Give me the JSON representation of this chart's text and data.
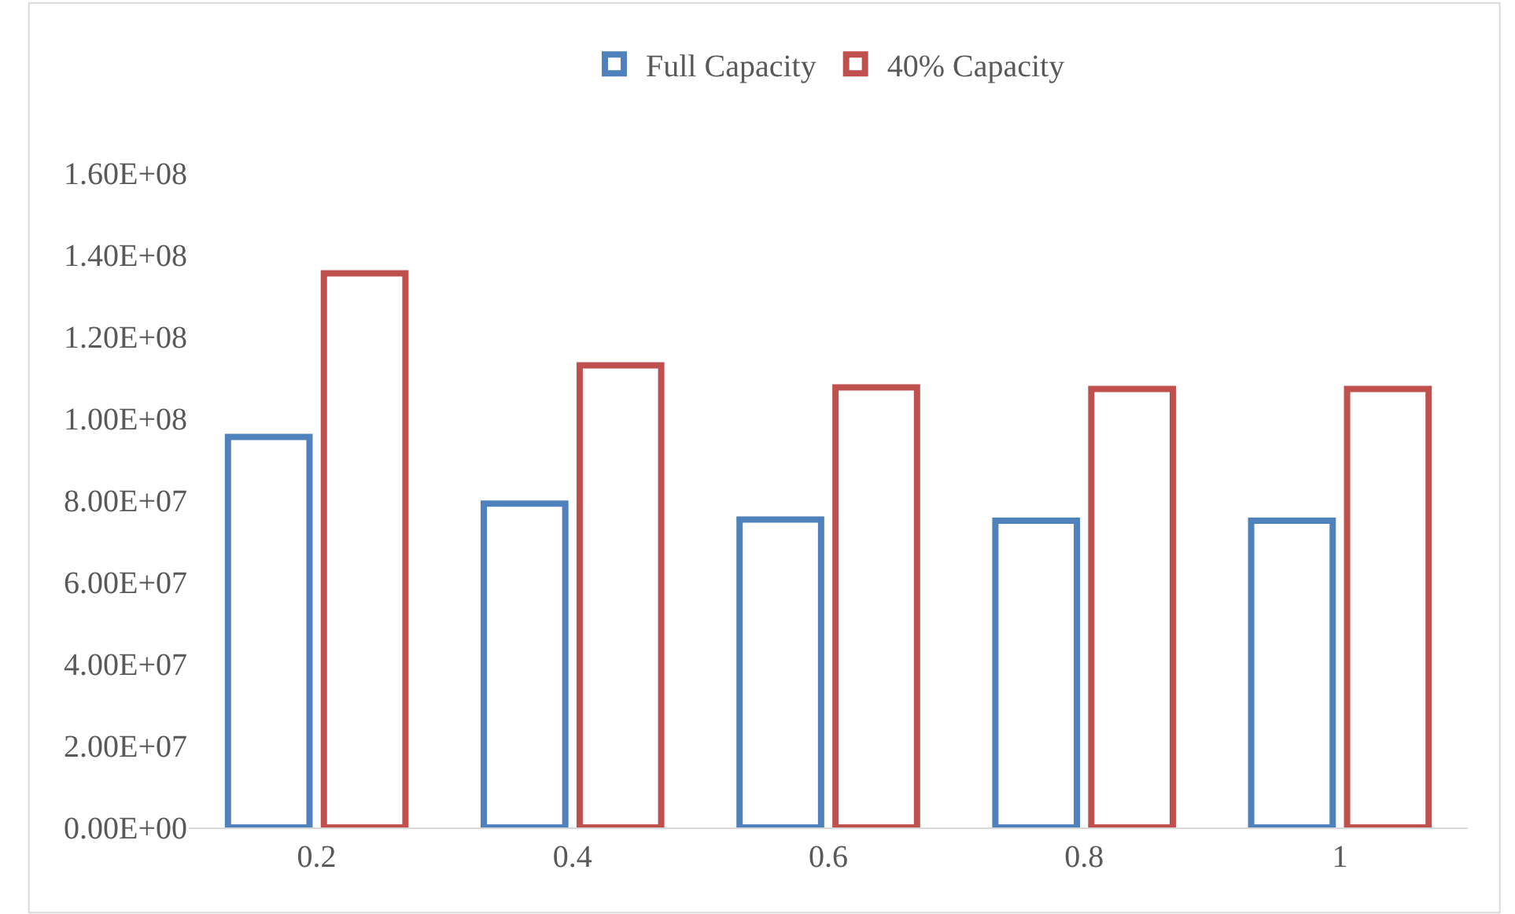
{
  "chart_data": {
    "type": "bar",
    "categories": [
      "0.2",
      "0.4",
      "0.6",
      "0.8",
      "1"
    ],
    "series": [
      {
        "name": "Full Capacity",
        "color": "#4f81bd",
        "values": [
          95500000,
          79200000,
          75300000,
          75000000,
          75000000
        ]
      },
      {
        "name": "40% Capacity",
        "color": "#c0504d",
        "values": [
          135500000,
          113000000,
          107600000,
          107200000,
          107200000
        ]
      }
    ],
    "ylim": [
      0,
      160000000
    ],
    "yticks": [
      {
        "value": 0,
        "label": "0.00E+00"
      },
      {
        "value": 20000000,
        "label": "2.00E+07"
      },
      {
        "value": 40000000,
        "label": "4.00E+07"
      },
      {
        "value": 60000000,
        "label": "6.00E+07"
      },
      {
        "value": 80000000,
        "label": "8.00E+07"
      },
      {
        "value": 100000000,
        "label": "1.00E+08"
      },
      {
        "value": 120000000,
        "label": "1.20E+08"
      },
      {
        "value": 140000000,
        "label": "1.40E+08"
      },
      {
        "value": 160000000,
        "label": "1.60E+08"
      }
    ],
    "legend": "top"
  }
}
